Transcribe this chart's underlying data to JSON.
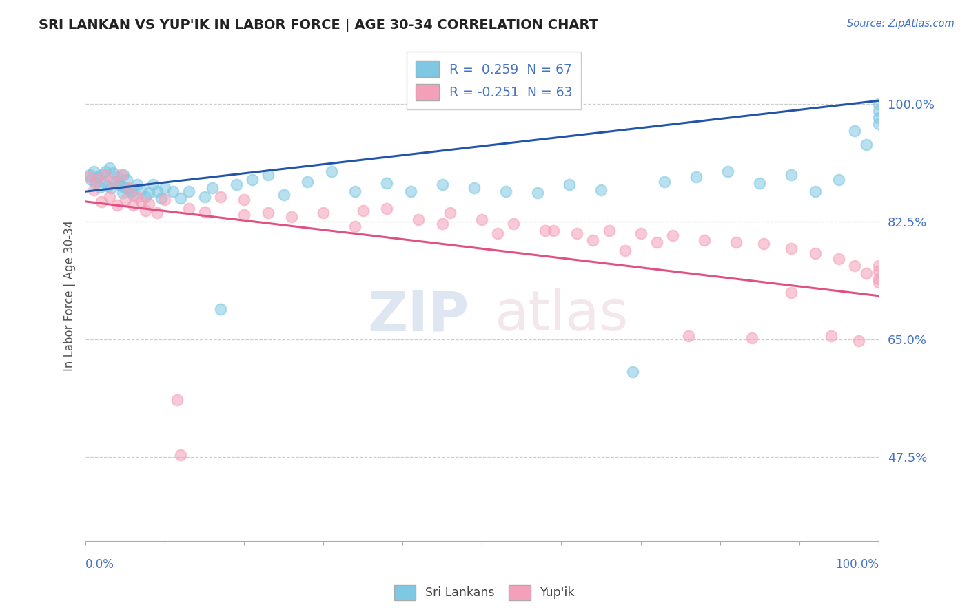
{
  "title": "SRI LANKAN VS YUP'IK IN LABOR FORCE | AGE 30-34 CORRELATION CHART",
  "source_text": "Source: ZipAtlas.com",
  "ylabel": "In Labor Force | Age 30-34",
  "yticks": [
    "47.5%",
    "65.0%",
    "82.5%",
    "100.0%"
  ],
  "ytick_vals": [
    0.475,
    0.65,
    0.825,
    1.0
  ],
  "xlim": [
    0.0,
    1.0
  ],
  "ylim": [
    0.35,
    1.08
  ],
  "blue_color": "#7ec8e3",
  "pink_color": "#f4a0b8",
  "trend_blue": "#2255aa",
  "trend_pink": "#e05080",
  "legend_label_sri": "Sri Lankans",
  "legend_label_yupik": "Yup'ik",
  "sri_R": 0.259,
  "sri_N": 67,
  "yupik_R": -0.251,
  "yupik_N": 63,
  "sri_trend_y0": 0.87,
  "sri_trend_y1": 1.005,
  "yupik_trend_y0": 0.855,
  "yupik_trend_y1": 0.715,
  "sri_x": [
    0.005,
    0.007,
    0.01,
    0.012,
    0.015,
    0.018,
    0.02,
    0.022,
    0.025,
    0.028,
    0.03,
    0.032,
    0.035,
    0.038,
    0.04,
    0.042,
    0.045,
    0.047,
    0.048,
    0.05,
    0.052,
    0.055,
    0.058,
    0.06,
    0.065,
    0.07,
    0.075,
    0.08,
    0.085,
    0.09,
    0.095,
    0.1,
    0.11,
    0.12,
    0.13,
    0.15,
    0.16,
    0.17,
    0.19,
    0.21,
    0.23,
    0.25,
    0.28,
    0.31,
    0.34,
    0.38,
    0.41,
    0.45,
    0.49,
    0.53,
    0.57,
    0.61,
    0.65,
    0.69,
    0.73,
    0.77,
    0.81,
    0.85,
    0.89,
    0.92,
    0.95,
    0.97,
    0.985,
    1.0,
    1.0,
    1.0,
    1.0
  ],
  "sri_y": [
    0.895,
    0.888,
    0.9,
    0.882,
    0.892,
    0.876,
    0.895,
    0.885,
    0.9,
    0.878,
    0.905,
    0.875,
    0.898,
    0.885,
    0.892,
    0.88,
    0.878,
    0.868,
    0.895,
    0.875,
    0.888,
    0.872,
    0.87,
    0.865,
    0.88,
    0.872,
    0.862,
    0.868,
    0.88,
    0.87,
    0.86,
    0.875,
    0.87,
    0.86,
    0.87,
    0.862,
    0.875,
    0.695,
    0.88,
    0.888,
    0.895,
    0.865,
    0.885,
    0.9,
    0.87,
    0.882,
    0.87,
    0.88,
    0.875,
    0.87,
    0.868,
    0.88,
    0.872,
    0.602,
    0.885,
    0.892,
    0.9,
    0.882,
    0.895,
    0.87,
    0.888,
    0.96,
    0.94,
    1.0,
    0.99,
    0.98,
    0.97
  ],
  "yupik_x": [
    0.005,
    0.01,
    0.015,
    0.02,
    0.025,
    0.03,
    0.035,
    0.04,
    0.045,
    0.05,
    0.055,
    0.06,
    0.065,
    0.07,
    0.075,
    0.08,
    0.09,
    0.1,
    0.115,
    0.13,
    0.15,
    0.17,
    0.2,
    0.23,
    0.26,
    0.3,
    0.34,
    0.38,
    0.42,
    0.46,
    0.5,
    0.54,
    0.58,
    0.62,
    0.66,
    0.7,
    0.74,
    0.78,
    0.82,
    0.855,
    0.89,
    0.92,
    0.95,
    0.97,
    0.985,
    1.0,
    1.0,
    1.0,
    1.0,
    0.12,
    0.2,
    0.35,
    0.45,
    0.52,
    0.59,
    0.64,
    0.68,
    0.72,
    0.76,
    0.84,
    0.89,
    0.94,
    0.975
  ],
  "yupik_y": [
    0.892,
    0.872,
    0.888,
    0.855,
    0.895,
    0.862,
    0.885,
    0.85,
    0.895,
    0.858,
    0.875,
    0.85,
    0.862,
    0.855,
    0.842,
    0.852,
    0.838,
    0.858,
    0.56,
    0.845,
    0.84,
    0.862,
    0.858,
    0.838,
    0.832,
    0.838,
    0.818,
    0.845,
    0.828,
    0.838,
    0.828,
    0.822,
    0.812,
    0.808,
    0.812,
    0.808,
    0.805,
    0.798,
    0.795,
    0.792,
    0.785,
    0.778,
    0.77,
    0.76,
    0.748,
    0.752,
    0.76,
    0.74,
    0.735,
    0.478,
    0.835,
    0.842,
    0.822,
    0.808,
    0.812,
    0.798,
    0.782,
    0.795,
    0.655,
    0.652,
    0.72,
    0.655,
    0.648
  ]
}
